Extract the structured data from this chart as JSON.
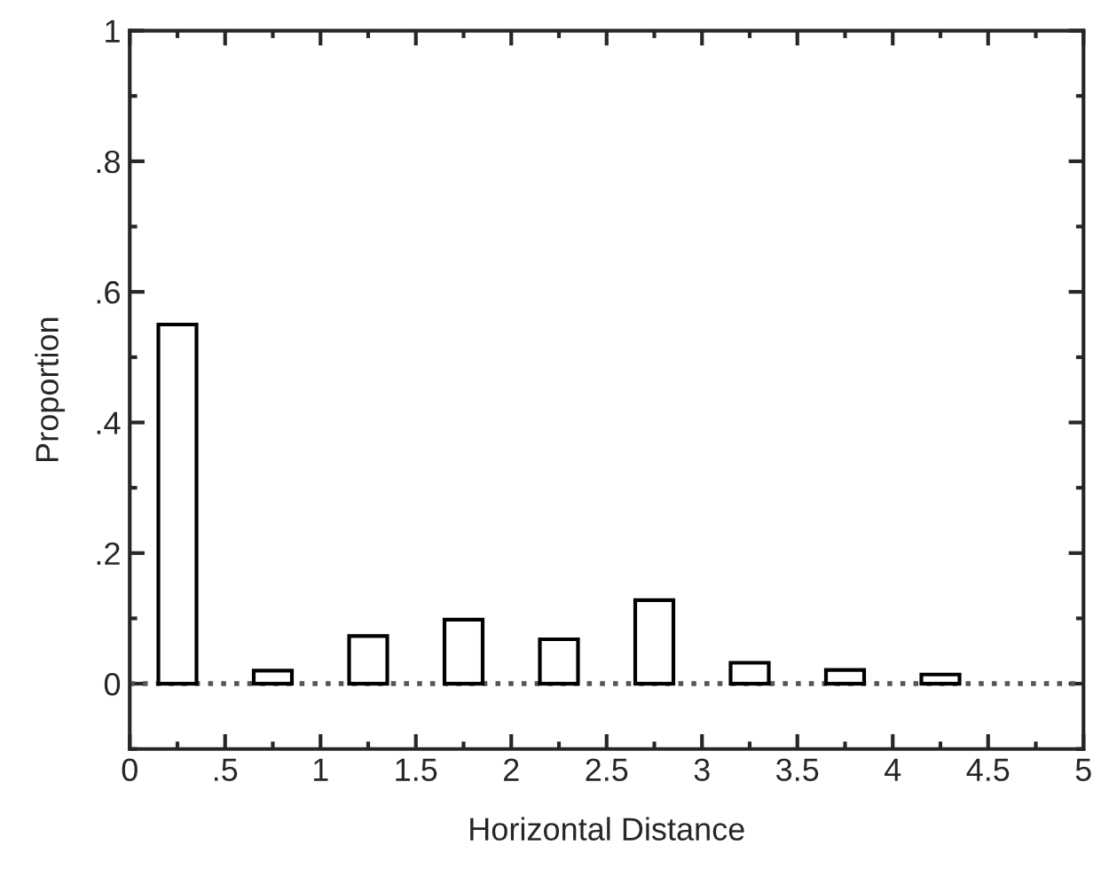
{
  "chart_data": {
    "type": "bar",
    "xlabel": "Horizontal Distance",
    "ylabel": "Proportion",
    "x": [
      0.25,
      0.75,
      1.25,
      1.75,
      2.25,
      2.75,
      3.25,
      3.75,
      4.25
    ],
    "series": [
      {
        "color": "#ffffff",
        "values": [
          0.55,
          0.02,
          0.073,
          0.098,
          0.068,
          0.128,
          0.032,
          0.021,
          0.014
        ]
      }
    ],
    "xlim": [
      0,
      5
    ],
    "ylim": [
      -0.1,
      1
    ],
    "xticks": [
      0,
      {
        "value": 0.5,
        "label": ".5"
      },
      1,
      1.5,
      2,
      2.5,
      3,
      3.5,
      4,
      4.5,
      5
    ],
    "yticks": [
      0,
      {
        "value": 0.2,
        "label": ".2"
      },
      {
        "value": 0.4,
        "label": ".4"
      },
      {
        "value": 0.6,
        "label": ".6"
      },
      {
        "value": 0.8,
        "label": ".8"
      },
      1
    ],
    "ref_lines": [
      {
        "axis": "y",
        "value": 0,
        "color": "#555555",
        "line_style": "dotted"
      }
    ],
    "grid": false,
    "legend": false
  }
}
